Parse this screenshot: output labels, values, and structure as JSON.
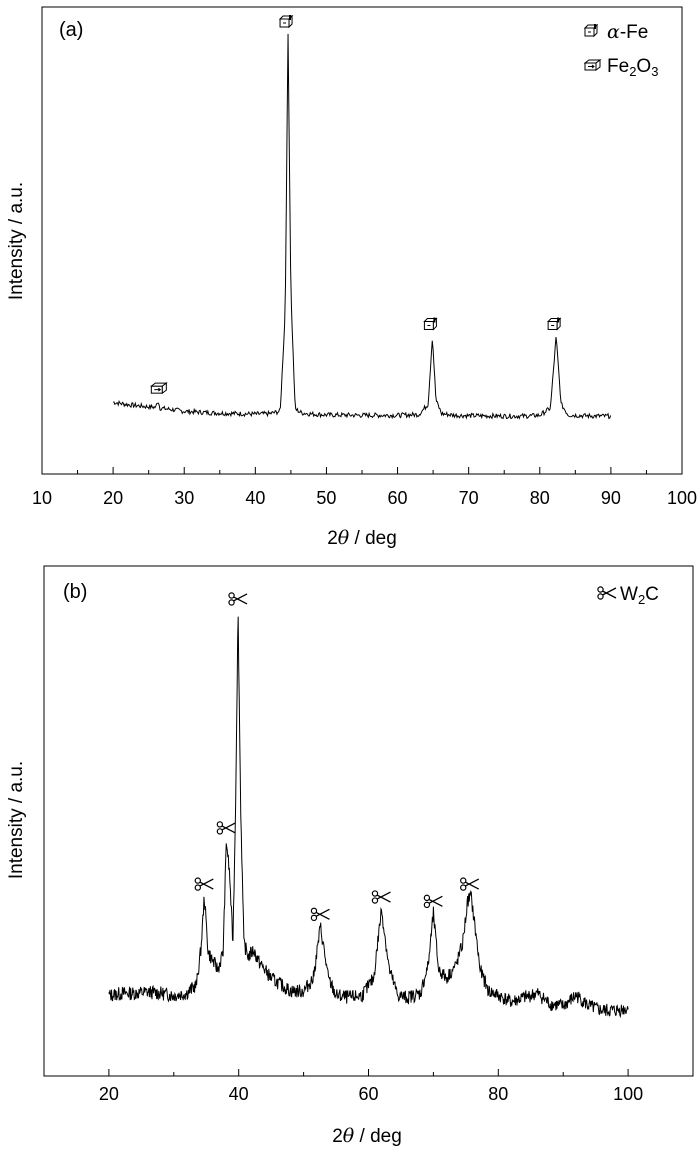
{
  "chart_data": [
    {
      "type": "line",
      "panel_label": "(a)",
      "xlabel": "2θ / deg",
      "ylabel": "Intensity / a.u.",
      "xlim": [
        10,
        100
      ],
      "xticks": [
        10,
        20,
        30,
        40,
        50,
        60,
        70,
        80,
        90,
        100
      ],
      "ylim": [
        0,
        100
      ],
      "grid": false,
      "legend": {
        "placement": "top-right",
        "entries": [
          {
            "symbol": "alpha-fe-marker-icon",
            "text": "α-Fe"
          },
          {
            "symbol": "fe2o3-marker-icon",
            "text": "Fe2O3"
          }
        ]
      },
      "series": [
        {
          "x": [
            20,
            22,
            24,
            26,
            26.3,
            26.6,
            28,
            30,
            32,
            34,
            36,
            38,
            40,
            42,
            43.5,
            44.2,
            44.6,
            45.0,
            45.6,
            46.5,
            48,
            50,
            55,
            60,
            63,
            64.3,
            64.9,
            65.4,
            66.2,
            68,
            70,
            75,
            78,
            80,
            81.5,
            82.3,
            83.0,
            84,
            86,
            88,
            90
          ],
          "y": [
            7.5,
            6.9,
            6.5,
            6.2,
            8.0,
            6.0,
            5.7,
            5.2,
            5.0,
            4.8,
            4.7,
            4.6,
            4.5,
            4.6,
            5.2,
            30,
            100,
            35,
            5.8,
            4.8,
            4.5,
            4.3,
            4.2,
            4.2,
            4.4,
            7,
            24,
            8,
            4.6,
            4.2,
            4.1,
            4.0,
            4.0,
            4.2,
            6,
            24,
            7,
            4.3,
            4.1,
            4.0,
            4.0
          ]
        }
      ],
      "annotations": [
        {
          "x": 26.5,
          "y": 8.0,
          "marker": "fe2o3-marker-icon"
        },
        {
          "x": 44.6,
          "y": 100,
          "marker": "alpha-fe-marker-icon"
        },
        {
          "x": 64.9,
          "y": 24,
          "marker": "alpha-fe-marker-icon"
        },
        {
          "x": 82.3,
          "y": 24,
          "marker": "alpha-fe-marker-icon"
        }
      ]
    },
    {
      "type": "line",
      "panel_label": "(b)",
      "xlabel": "2θ / deg",
      "ylabel": "Intensity / a.u.",
      "xlim": [
        10,
        110
      ],
      "xticks": [
        20,
        40,
        60,
        80,
        100
      ],
      "ylim": [
        0,
        100
      ],
      "grid": false,
      "legend": {
        "placement": "top-right",
        "entries": [
          {
            "symbol": "scissors-marker-icon",
            "text": "W2C"
          }
        ]
      },
      "series": [
        {
          "x": [
            20,
            22,
            24,
            26,
            28,
            30,
            32,
            33.5,
            34.2,
            34.7,
            35.3,
            36.0,
            36.8,
            37.6,
            38.1,
            38.6,
            39.1,
            39.5,
            39.9,
            40.3,
            40.8,
            41.5,
            42.3,
            43,
            44,
            45,
            46,
            47,
            48,
            50,
            51.5,
            52.6,
            53.8,
            55,
            57,
            59,
            60.8,
            62.0,
            63.2,
            64.5,
            66,
            68,
            69.2,
            70.0,
            70.8,
            72,
            73.5,
            74.5,
            75.3,
            75.8,
            76.4,
            77.2,
            78.5,
            80,
            82,
            84,
            86,
            88,
            90,
            92,
            94,
            96,
            98,
            100
          ],
          "y": [
            8,
            8.5,
            8.5,
            8.8,
            8.5,
            8,
            8.5,
            10.5,
            19,
            31,
            18,
            16,
            14,
            18,
            44,
            36,
            20,
            50,
            97,
            52,
            20,
            17,
            18.5,
            16,
            14,
            12,
            11,
            10,
            9,
            9,
            12,
            24,
            12,
            8,
            7.5,
            8,
            12,
            28,
            14,
            8,
            7.5,
            8.5,
            15,
            27,
            14,
            12,
            15,
            20,
            30,
            31,
            24,
            14,
            9,
            8,
            6.5,
            7.5,
            8.5,
            6,
            5.5,
            8,
            5.5,
            4.5,
            4.5,
            5
          ]
        }
      ],
      "annotations": [
        {
          "x": 34.7,
          "y": 31,
          "marker": "scissors-marker-icon"
        },
        {
          "x": 38.1,
          "y": 44,
          "marker": "scissors-marker-icon"
        },
        {
          "x": 39.9,
          "y": 97,
          "marker": "scissors-marker-icon"
        },
        {
          "x": 52.6,
          "y": 24,
          "marker": "scissors-marker-icon"
        },
        {
          "x": 62.0,
          "y": 28,
          "marker": "scissors-marker-icon"
        },
        {
          "x": 70.0,
          "y": 27,
          "marker": "scissors-marker-icon"
        },
        {
          "x": 75.6,
          "y": 31,
          "marker": "scissors-marker-icon"
        }
      ]
    }
  ]
}
